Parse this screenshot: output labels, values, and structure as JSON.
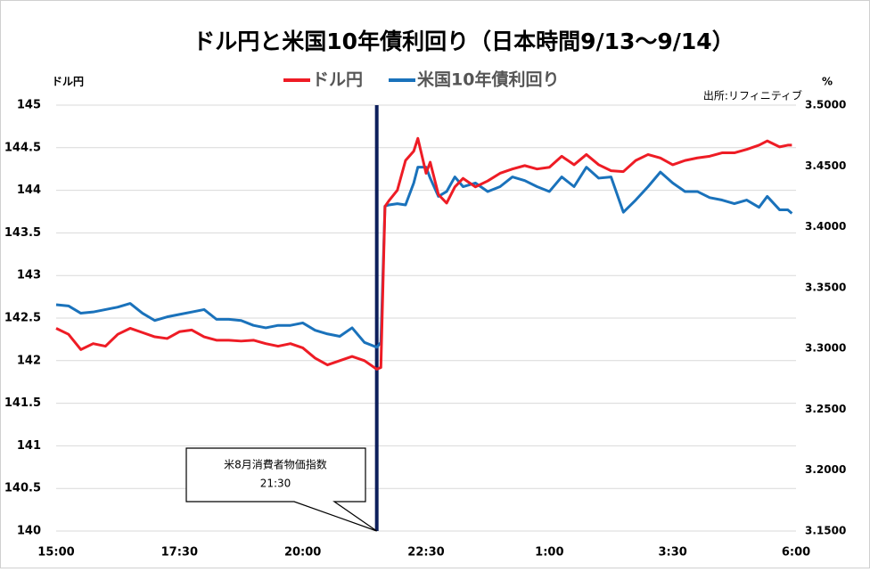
{
  "chart_data": {
    "type": "line",
    "title": "ドル円と米国10年債利回り（日本時間9/13～9/14）",
    "y_label": "ドル円",
    "y2_label": "%",
    "source": "出所:リフィニティブ",
    "x": [
      0,
      15,
      30,
      45,
      60,
      75,
      90,
      105,
      120,
      135,
      150,
      165,
      180,
      195,
      210,
      225,
      240,
      255,
      270,
      285,
      300,
      315,
      330,
      345,
      360,
      375,
      390,
      395,
      400,
      405,
      415,
      425,
      435,
      440,
      450,
      455,
      465,
      475,
      485,
      495,
      510,
      525,
      540,
      555,
      570,
      585,
      600,
      615,
      630,
      645,
      660,
      675,
      690,
      705,
      720,
      735,
      750,
      765,
      780,
      795,
      810,
      825,
      840,
      855,
      865,
      880,
      890,
      895
    ],
    "xlim": [
      0,
      900
    ],
    "xticks": [
      {
        "value": 0,
        "label": "15:00"
      },
      {
        "value": 150,
        "label": "17:30"
      },
      {
        "value": 300,
        "label": "20:00"
      },
      {
        "value": 450,
        "label": "22:30"
      },
      {
        "value": 600,
        "label": "1:00"
      },
      {
        "value": 750,
        "label": "3:30"
      },
      {
        "value": 900,
        "label": "6:00"
      }
    ],
    "ylim": [
      140,
      145
    ],
    "yticks": [
      140,
      140.5,
      141,
      141.5,
      142,
      142.5,
      143,
      143.5,
      144,
      144.5,
      145
    ],
    "y2lim": [
      3.15,
      3.5
    ],
    "y2ticks": [
      {
        "value": 3.15,
        "label": "3.1500"
      },
      {
        "value": 3.2,
        "label": "3.2000"
      },
      {
        "value": 3.25,
        "label": "3.2500"
      },
      {
        "value": 3.3,
        "label": "3.3000"
      },
      {
        "value": 3.35,
        "label": "3.3500"
      },
      {
        "value": 3.4,
        "label": "3.4000"
      },
      {
        "value": 3.45,
        "label": "3.4500"
      },
      {
        "value": 3.5,
        "label": "3.5000"
      }
    ],
    "grid": true,
    "series": [
      {
        "name": "ドル円",
        "color": "#ee1c25",
        "values": [
          142.38,
          142.31,
          142.13,
          142.2,
          142.17,
          142.31,
          142.38,
          142.33,
          142.28,
          142.26,
          142.34,
          142.36,
          142.28,
          142.24,
          142.24,
          142.23,
          142.24,
          142.2,
          142.17,
          142.2,
          142.15,
          142.03,
          141.95,
          142.0,
          142.05,
          142.0,
          141.9,
          141.92,
          143.81,
          143.88,
          144.0,
          144.35,
          144.46,
          144.61,
          144.2,
          144.33,
          143.95,
          143.85,
          144.04,
          144.14,
          144.04,
          144.11,
          144.2,
          144.25,
          144.29,
          144.25,
          144.27,
          144.4,
          144.3,
          144.42,
          144.3,
          144.23,
          144.22,
          144.35,
          144.42,
          144.38,
          144.3,
          144.35,
          144.38,
          144.4,
          144.44,
          144.44,
          144.48,
          144.53,
          144.58,
          144.51,
          144.53,
          144.53
        ]
      },
      {
        "name": "米国10年債利回り",
        "color": "#1a72bb",
        "axis": "y2",
        "values": [
          3.336,
          3.335,
          3.329,
          3.33,
          3.332,
          3.334,
          3.337,
          3.329,
          3.323,
          3.326,
          3.328,
          3.33,
          3.332,
          3.324,
          3.324,
          3.323,
          3.319,
          3.317,
          3.319,
          3.319,
          3.321,
          3.315,
          3.312,
          3.31,
          3.317,
          3.305,
          3.301,
          3.305,
          3.417,
          3.418,
          3.419,
          3.418,
          3.436,
          3.449,
          3.449,
          3.44,
          3.425,
          3.429,
          3.441,
          3.433,
          3.436,
          3.429,
          3.433,
          3.441,
          3.438,
          3.433,
          3.429,
          3.441,
          3.433,
          3.449,
          3.44,
          3.441,
          3.412,
          3.422,
          3.433,
          3.445,
          3.436,
          3.429,
          3.429,
          3.424,
          3.422,
          3.419,
          3.422,
          3.416,
          3.425,
          3.414,
          3.414,
          3.411
        ]
      }
    ],
    "annotation": {
      "x": 390,
      "label": "米8月消費者物価指数",
      "time": "21:30",
      "color": "#0d1f5c"
    }
  }
}
